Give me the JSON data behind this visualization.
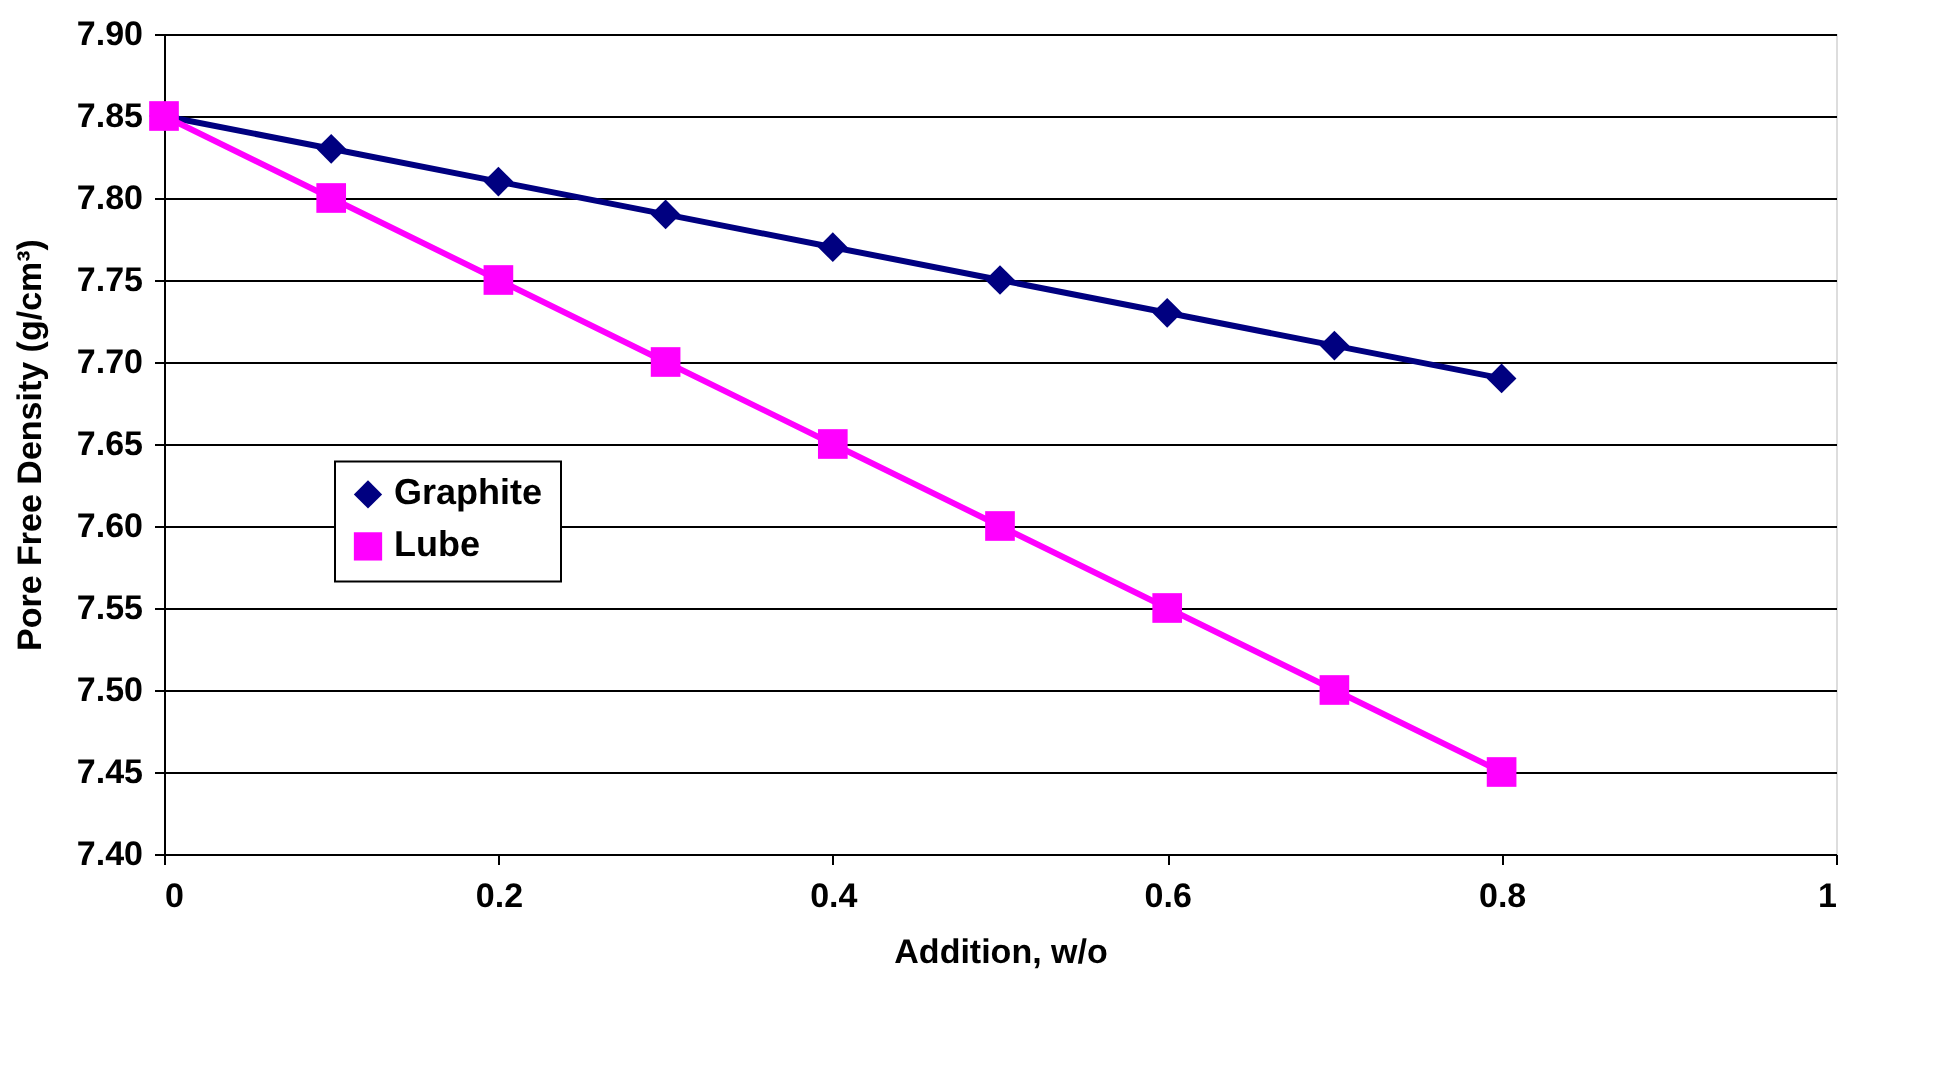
{
  "chart_data": {
    "type": "line",
    "xlabel": "Addition, w/o",
    "ylabel": "Pore Free Density (g/cm³)",
    "x": [
      0,
      0.1,
      0.2,
      0.3,
      0.4,
      0.5,
      0.6,
      0.7,
      0.8
    ],
    "series": [
      {
        "name": "Graphite",
        "color": "#000080",
        "marker": "diamond",
        "values": [
          7.85,
          7.83,
          7.81,
          7.79,
          7.77,
          7.75,
          7.73,
          7.71,
          7.69
        ]
      },
      {
        "name": "Lube",
        "color": "#ff00ff",
        "marker": "square",
        "values": [
          7.85,
          7.8,
          7.75,
          7.7,
          7.65,
          7.6,
          7.55,
          7.5,
          7.45
        ]
      }
    ],
    "xlim": [
      0,
      1
    ],
    "xticks": [
      0,
      0.2,
      0.4,
      0.6,
      0.8,
      1
    ],
    "ylim": [
      7.4,
      7.9
    ],
    "yticks": [
      {
        "value": 7.4,
        "label": "7.40"
      },
      {
        "value": 7.45,
        "label": "7.45"
      },
      {
        "value": 7.5,
        "label": "7.50"
      },
      {
        "value": 7.55,
        "label": "7.55"
      },
      {
        "value": 7.6,
        "label": "7.60"
      },
      {
        "value": 7.65,
        "label": "7.65"
      },
      {
        "value": 7.7,
        "label": "7.70"
      },
      {
        "value": 7.75,
        "label": "7.75"
      },
      {
        "value": 7.8,
        "label": "7.80"
      },
      {
        "value": 7.85,
        "label": "7.85"
      },
      {
        "value": 7.9,
        "label": "7.90"
      }
    ],
    "grid": "y",
    "legend": "left",
    "line_style": "solid"
  }
}
